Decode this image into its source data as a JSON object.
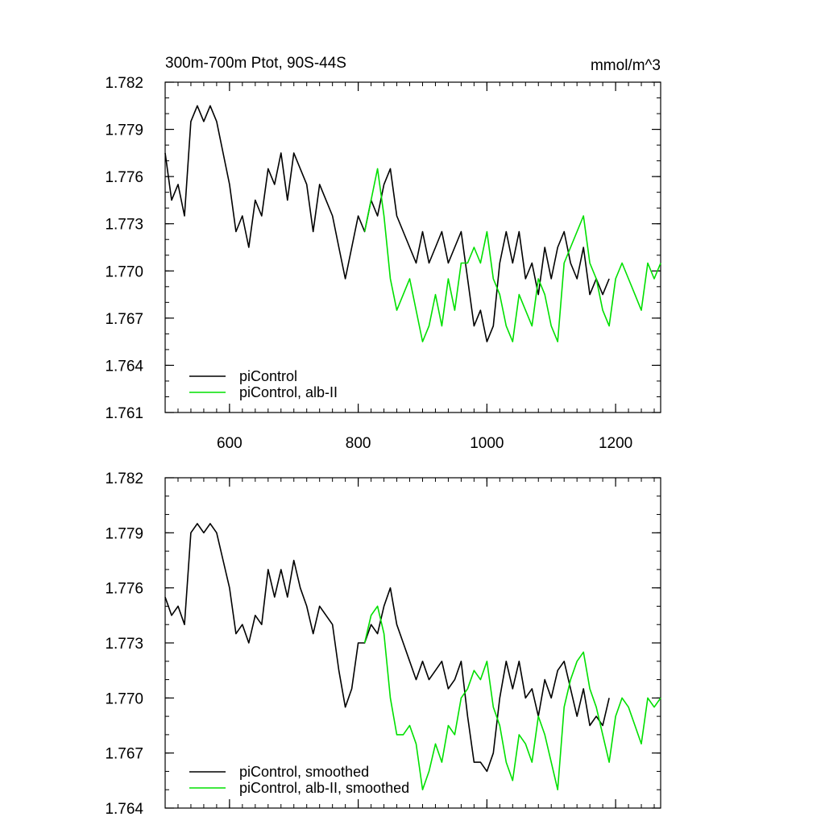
{
  "chart_data": [
    {
      "type": "line",
      "title": "300m-700m Ptot, 90S-44S",
      "units": "mmol/m^3",
      "xlim": [
        500,
        1270
      ],
      "ylim": [
        1.761,
        1.782
      ],
      "xticks": [
        600,
        800,
        1000,
        1200
      ],
      "xtick_labels": [
        "600",
        "800",
        "1000",
        "1200"
      ],
      "yticks": [
        1.761,
        1.764,
        1.767,
        1.77,
        1.773,
        1.776,
        1.779,
        1.782
      ],
      "ytick_labels": [
        "1.761",
        "1.764",
        "1.767",
        "1.770",
        "1.773",
        "1.776",
        "1.779",
        "1.782"
      ],
      "legend_position": "bottom-left",
      "series": [
        {
          "name": "piControl",
          "color": "#000000",
          "x": [
            500,
            510,
            520,
            530,
            540,
            550,
            560,
            570,
            580,
            590,
            600,
            610,
            620,
            630,
            640,
            650,
            660,
            670,
            680,
            690,
            700,
            710,
            720,
            730,
            740,
            750,
            760,
            770,
            780,
            790,
            800,
            810,
            820,
            830,
            840,
            850,
            860,
            870,
            880,
            890,
            900,
            910,
            920,
            930,
            940,
            950,
            960,
            970,
            980,
            990,
            1000,
            1010,
            1020,
            1030,
            1040,
            1050,
            1060,
            1070,
            1080,
            1090,
            1100,
            1110,
            1120,
            1130,
            1140,
            1150,
            1160,
            1170,
            1180,
            1190
          ],
          "y": [
            1.7775,
            1.7745,
            1.7755,
            1.7735,
            1.7795,
            1.7805,
            1.7795,
            1.7805,
            1.7795,
            1.7775,
            1.7755,
            1.7725,
            1.7735,
            1.7715,
            1.7745,
            1.7735,
            1.7765,
            1.7755,
            1.7775,
            1.7745,
            1.7775,
            1.7765,
            1.7755,
            1.7725,
            1.7755,
            1.7745,
            1.7735,
            1.7715,
            1.7695,
            1.7715,
            1.7735,
            1.7725,
            1.7745,
            1.7735,
            1.7755,
            1.7765,
            1.7735,
            1.7725,
            1.7715,
            1.7705,
            1.7725,
            1.7705,
            1.7715,
            1.7725,
            1.7705,
            1.7715,
            1.7725,
            1.7695,
            1.7665,
            1.7675,
            1.7655,
            1.7665,
            1.7705,
            1.7725,
            1.7705,
            1.7725,
            1.7695,
            1.7705,
            1.7685,
            1.7715,
            1.7695,
            1.7715,
            1.7725,
            1.7705,
            1.7695,
            1.7715,
            1.7685,
            1.7695,
            1.7685,
            1.7695
          ]
        },
        {
          "name": "piControl, alb-II",
          "color": "#00e000",
          "x": [
            810,
            820,
            830,
            840,
            850,
            860,
            870,
            880,
            890,
            900,
            910,
            920,
            930,
            940,
            950,
            960,
            970,
            980,
            990,
            1000,
            1010,
            1020,
            1030,
            1040,
            1050,
            1060,
            1070,
            1080,
            1090,
            1100,
            1110,
            1120,
            1130,
            1140,
            1150,
            1160,
            1170,
            1180,
            1190,
            1200,
            1210,
            1220,
            1230,
            1240,
            1250,
            1260,
            1270
          ],
          "y": [
            1.7725,
            1.7745,
            1.7765,
            1.7735,
            1.7695,
            1.7675,
            1.7685,
            1.7695,
            1.7675,
            1.7655,
            1.7665,
            1.7685,
            1.7665,
            1.7695,
            1.7675,
            1.7705,
            1.7705,
            1.7715,
            1.7705,
            1.7725,
            1.7695,
            1.7685,
            1.7665,
            1.7655,
            1.7685,
            1.7675,
            1.7665,
            1.7695,
            1.7685,
            1.7665,
            1.7655,
            1.7705,
            1.7715,
            1.7725,
            1.7735,
            1.7705,
            1.7695,
            1.7675,
            1.7665,
            1.7695,
            1.7705,
            1.7695,
            1.7685,
            1.7675,
            1.7705,
            1.7695,
            1.7705
          ]
        }
      ]
    },
    {
      "type": "line",
      "xlim": [
        500,
        1270
      ],
      "ylim": [
        1.764,
        1.782
      ],
      "xticks": [
        600,
        800,
        1000,
        1200
      ],
      "yticks": [
        1.764,
        1.767,
        1.77,
        1.773,
        1.776,
        1.779,
        1.782
      ],
      "ytick_labels": [
        "1.764",
        "1.767",
        "1.770",
        "1.773",
        "1.776",
        "1.779",
        "1.782"
      ],
      "legend_position": "bottom-left",
      "series": [
        {
          "name": "piControl, smoothed",
          "color": "#000000",
          "x": [
            500,
            510,
            520,
            530,
            540,
            550,
            560,
            570,
            580,
            590,
            600,
            610,
            620,
            630,
            640,
            650,
            660,
            670,
            680,
            690,
            700,
            710,
            720,
            730,
            740,
            750,
            760,
            770,
            780,
            790,
            800,
            810,
            820,
            830,
            840,
            850,
            860,
            870,
            880,
            890,
            900,
            910,
            920,
            930,
            940,
            950,
            960,
            970,
            980,
            990,
            1000,
            1010,
            1020,
            1030,
            1040,
            1050,
            1060,
            1070,
            1080,
            1090,
            1100,
            1110,
            1120,
            1130,
            1140,
            1150,
            1160,
            1170,
            1180,
            1190
          ],
          "y": [
            1.7755,
            1.7745,
            1.775,
            1.774,
            1.779,
            1.7795,
            1.779,
            1.7795,
            1.779,
            1.7775,
            1.776,
            1.7735,
            1.774,
            1.773,
            1.7745,
            1.774,
            1.777,
            1.7755,
            1.777,
            1.7755,
            1.7775,
            1.776,
            1.775,
            1.7735,
            1.775,
            1.7745,
            1.774,
            1.7715,
            1.7695,
            1.7705,
            1.773,
            1.773,
            1.774,
            1.7735,
            1.775,
            1.776,
            1.774,
            1.773,
            1.772,
            1.771,
            1.772,
            1.771,
            1.7715,
            1.772,
            1.7705,
            1.771,
            1.772,
            1.769,
            1.7665,
            1.7665,
            1.766,
            1.767,
            1.77,
            1.772,
            1.7705,
            1.772,
            1.77,
            1.7705,
            1.769,
            1.771,
            1.77,
            1.7715,
            1.772,
            1.7705,
            1.769,
            1.7705,
            1.7685,
            1.769,
            1.7685,
            1.77
          ]
        },
        {
          "name": "piControl, alb-II, smoothed",
          "color": "#00e000",
          "x": [
            810,
            820,
            830,
            840,
            850,
            860,
            870,
            880,
            890,
            900,
            910,
            920,
            930,
            940,
            950,
            960,
            970,
            980,
            990,
            1000,
            1010,
            1020,
            1030,
            1040,
            1050,
            1060,
            1070,
            1080,
            1090,
            1100,
            1110,
            1120,
            1130,
            1140,
            1150,
            1160,
            1170,
            1180,
            1190,
            1200,
            1210,
            1220,
            1230,
            1240,
            1250,
            1260,
            1270
          ],
          "y": [
            1.773,
            1.7745,
            1.775,
            1.7735,
            1.77,
            1.768,
            1.768,
            1.7685,
            1.7675,
            1.765,
            1.766,
            1.7675,
            1.7665,
            1.7685,
            1.768,
            1.77,
            1.7705,
            1.7715,
            1.771,
            1.772,
            1.7695,
            1.7685,
            1.7665,
            1.7655,
            1.768,
            1.7675,
            1.7665,
            1.769,
            1.768,
            1.7665,
            1.765,
            1.7695,
            1.771,
            1.772,
            1.7725,
            1.7705,
            1.7695,
            1.768,
            1.7665,
            1.769,
            1.77,
            1.7695,
            1.7685,
            1.7675,
            1.77,
            1.7695,
            1.77
          ]
        }
      ]
    }
  ]
}
